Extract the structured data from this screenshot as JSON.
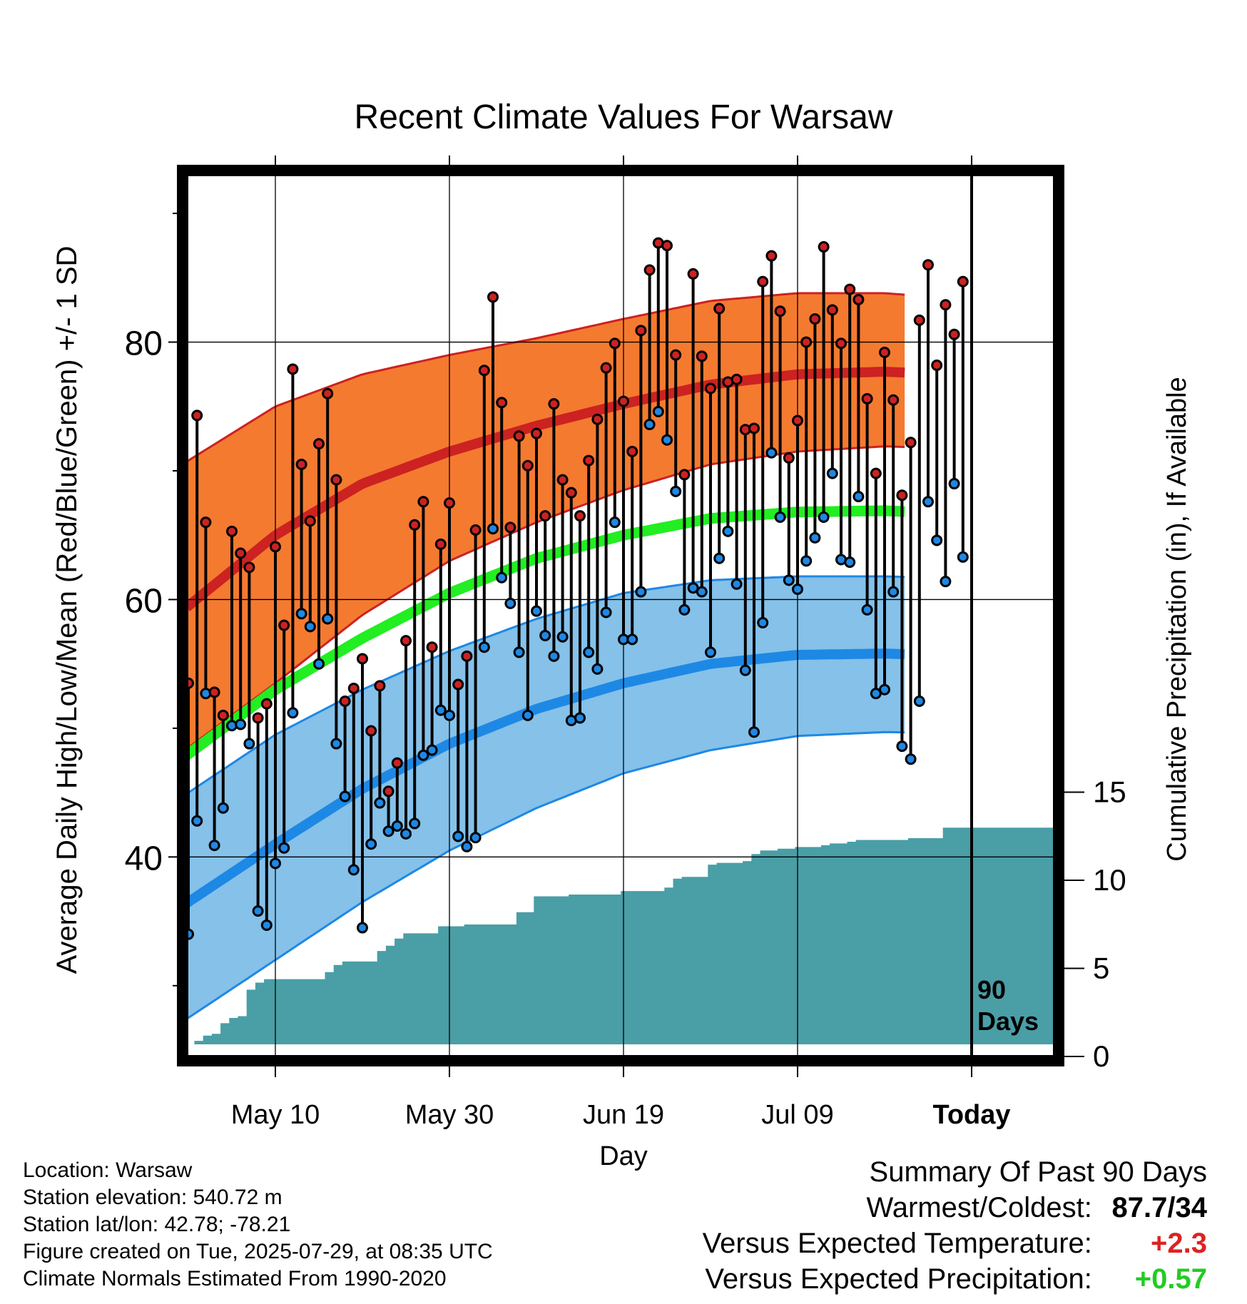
{
  "chart_data": {
    "type": "line",
    "title": "Recent Climate Values For Warsaw",
    "xlabel": "Day",
    "ylabel": "Average Daily High/Low/Mean (Red/Blue/Green) +/- 1 SD",
    "y2label": "Cumulative Precipitation (in), If Available",
    "x_tick_labels": [
      "May 10",
      "May 30",
      "Jun 19",
      "Jul 09",
      "Today"
    ],
    "x_tick_days": [
      10,
      30,
      50,
      70,
      90
    ],
    "x_range": [
      0,
      100
    ],
    "ylim": [
      24.5,
      93
    ],
    "y_ticks": [
      40,
      60,
      80
    ],
    "y_minor_ticks": [
      30,
      50,
      70,
      90
    ],
    "y2lim": [
      0,
      15
    ],
    "y2_ticks": [
      0,
      5,
      10,
      15
    ],
    "today_label": "90\nDays",
    "colors": {
      "high_band": "#f47a30",
      "high_edge": "#cc2222",
      "mean_high": "#cc2222",
      "low_band": "#85c1e9",
      "low_edge": "#1e88e5",
      "mean_low": "#1e88e5",
      "mean": "#22ee22",
      "precip": "#4a9ea6",
      "high_marker": "#cc2222",
      "low_marker": "#1e88e5"
    },
    "normals": {
      "days": [
        0,
        10,
        20,
        30,
        40,
        50,
        60,
        70,
        80,
        90,
        100
      ],
      "high_mean": [
        59.5,
        65.0,
        69.0,
        71.5,
        73.5,
        75.2,
        76.7,
        77.5,
        77.7,
        77.4,
        76.8
      ],
      "high_plus_sd": [
        70.8,
        75.0,
        77.5,
        79.0,
        80.3,
        81.8,
        83.2,
        83.8,
        83.8,
        83.3,
        82.5
      ],
      "high_minus_sd": [
        48.5,
        53.5,
        58.8,
        63.0,
        66.0,
        68.5,
        70.5,
        71.5,
        71.9,
        71.7,
        71.2
      ],
      "mean": [
        48.0,
        53.0,
        57.0,
        60.5,
        63.2,
        65.0,
        66.3,
        66.8,
        66.9,
        66.6,
        66.1
      ],
      "low_mean": [
        36.5,
        41.0,
        45.3,
        48.8,
        51.5,
        53.5,
        55.0,
        55.7,
        55.8,
        55.6,
        55.2
      ],
      "low_plus_sd": [
        45.0,
        49.5,
        53.0,
        56.0,
        58.5,
        60.5,
        61.5,
        61.8,
        61.8,
        61.6,
        61.1
      ],
      "low_minus_sd": [
        27.5,
        32.0,
        36.5,
        40.5,
        43.8,
        46.5,
        48.3,
        49.4,
        49.7,
        49.6,
        49.2
      ]
    },
    "days": [
      0,
      1,
      2,
      3,
      4,
      5,
      6,
      7,
      8,
      9,
      10,
      11,
      12,
      13,
      14,
      15,
      16,
      17,
      18,
      19,
      20,
      21,
      22,
      23,
      24,
      25,
      26,
      27,
      28,
      29,
      30,
      31,
      32,
      33,
      34,
      35,
      36,
      37,
      38,
      39,
      40,
      41,
      42,
      43,
      44,
      45,
      46,
      47,
      48,
      49,
      50,
      51,
      52,
      53,
      54,
      55,
      56,
      57,
      58,
      59,
      60,
      61,
      62,
      63,
      64,
      65,
      66,
      67,
      68,
      69,
      70,
      71,
      72,
      73,
      74,
      75,
      76,
      77,
      78,
      79,
      80,
      81,
      82,
      83,
      84,
      85,
      86,
      87,
      88,
      89
    ],
    "highs": [
      53.5,
      74.3,
      66.0,
      52.8,
      51.0,
      65.3,
      63.6,
      62.5,
      50.8,
      51.9,
      64.1,
      58.0,
      77.9,
      70.5,
      66.1,
      72.1,
      76.0,
      69.3,
      52.1,
      53.1,
      55.4,
      49.8,
      53.3,
      45.1,
      47.3,
      56.8,
      65.8,
      67.6,
      56.3,
      64.3,
      67.5,
      53.4,
      55.6,
      65.4,
      77.8,
      83.5,
      75.3,
      65.6,
      72.7,
      70.4,
      72.9,
      66.5,
      75.2,
      69.3,
      68.3,
      66.5,
      70.8,
      74.0,
      78.0,
      79.9,
      75.4,
      71.5,
      80.9,
      85.6,
      87.7,
      87.5,
      79.0,
      69.7,
      85.3,
      78.9,
      76.4,
      82.6,
      76.9,
      77.1,
      73.2,
      73.3,
      84.7,
      86.7,
      82.4,
      71.0,
      73.9,
      80.0,
      81.8,
      87.4,
      82.5,
      79.9,
      84.1,
      83.3,
      75.6,
      69.8,
      79.2,
      75.5,
      68.1,
      72.2,
      81.7,
      86.0,
      78.2,
      82.9,
      80.6,
      84.7
    ],
    "lows": [
      34.0,
      42.8,
      52.7,
      40.9,
      43.8,
      50.2,
      50.3,
      48.8,
      35.8,
      34.7,
      39.5,
      40.7,
      51.2,
      58.9,
      57.9,
      55.0,
      58.5,
      48.8,
      44.7,
      39.0,
      34.5,
      41.0,
      44.2,
      42.0,
      42.4,
      41.8,
      42.6,
      47.9,
      48.3,
      51.4,
      51.0,
      41.6,
      40.8,
      41.5,
      56.3,
      65.5,
      61.7,
      59.7,
      55.9,
      51.0,
      59.1,
      57.2,
      55.6,
      57.1,
      50.6,
      50.8,
      55.9,
      54.6,
      59.0,
      66.0,
      56.9,
      56.9,
      60.6,
      73.6,
      74.6,
      72.4,
      68.4,
      59.2,
      60.9,
      60.6,
      55.9,
      63.2,
      65.3,
      61.2,
      54.5,
      49.7,
      58.2,
      71.4,
      66.4,
      61.5,
      60.8,
      63.0,
      64.8,
      66.4,
      69.8,
      63.1,
      62.9,
      68.0,
      59.2,
      52.7,
      53.0,
      60.6,
      48.6,
      47.6,
      52.1,
      67.6,
      64.6,
      61.4,
      69.0,
      63.3
    ],
    "precip_cumulative": [
      0.2,
      0.5,
      0.6,
      1.2,
      1.5,
      1.6,
      3.1,
      3.5,
      3.7,
      3.7,
      3.7,
      3.7,
      3.7,
      3.7,
      3.7,
      4.1,
      4.5,
      4.7,
      4.7,
      4.7,
      4.7,
      5.3,
      5.6,
      6.0,
      6.3,
      6.3,
      6.3,
      6.3,
      6.7,
      6.7,
      6.7,
      6.8,
      6.8,
      6.8,
      6.8,
      6.8,
      6.8,
      7.5,
      7.5,
      8.4,
      8.4,
      8.4,
      8.4,
      8.5,
      8.5,
      8.5,
      8.5,
      8.5,
      8.5,
      8.7,
      8.7,
      8.7,
      8.7,
      8.7,
      8.9,
      9.4,
      9.5,
      9.5,
      9.5,
      10.2,
      10.3,
      10.3,
      10.3,
      10.4,
      10.8,
      11.0,
      11.0,
      11.1,
      11.1,
      11.2,
      11.2,
      11.2,
      11.3,
      11.4,
      11.4,
      11.5,
      11.6,
      11.6,
      11.6,
      11.6,
      11.6,
      11.6,
      11.7,
      11.7,
      11.7,
      11.7,
      12.3,
      12.3,
      12.3,
      12.3
    ]
  },
  "info": {
    "location": "Location: Warsaw",
    "elevation": "Station elevation: 540.72 m",
    "latlon": "Station lat/lon: 42.78; -78.21",
    "created": "Figure created on Tue, 2025-07-29, at 08:35 UTC",
    "normals": "Climate Normals Estimated From 1990-2020"
  },
  "summary": {
    "heading": "Summary Of Past 90 Days",
    "warmest_coldest_label": "Warmest/Coldest:",
    "warmest_coldest_value": "87.7/34",
    "temp_label": "Versus Expected Temperature:",
    "temp_value": "+2.3",
    "temp_color": "#dd2222",
    "precip_label": "Versus Expected Precipitation:",
    "precip_value": "+0.57",
    "precip_color": "#22cc22"
  }
}
